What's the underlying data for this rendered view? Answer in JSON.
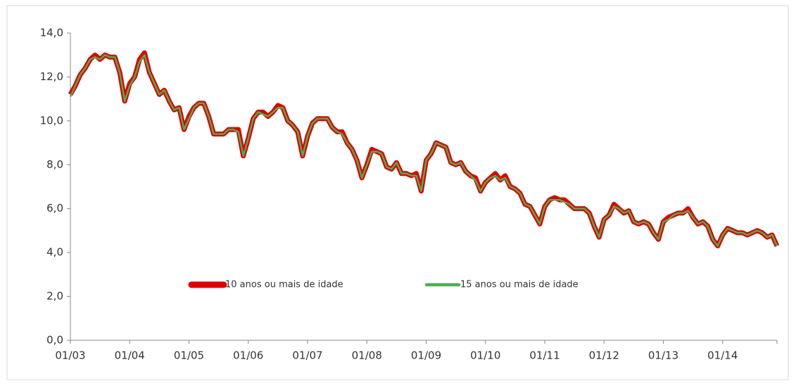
{
  "chart_data": {
    "type": "line",
    "categories": [
      "01/03",
      null,
      null,
      null,
      null,
      null,
      null,
      null,
      null,
      null,
      null,
      null,
      "01/04",
      null,
      null,
      null,
      null,
      null,
      null,
      null,
      null,
      null,
      null,
      null,
      "01/05",
      null,
      null,
      null,
      null,
      null,
      null,
      null,
      null,
      null,
      null,
      null,
      "01/06",
      null,
      null,
      null,
      null,
      null,
      null,
      null,
      null,
      null,
      null,
      null,
      "01/07",
      null,
      null,
      null,
      null,
      null,
      null,
      null,
      null,
      null,
      null,
      null,
      "01/08",
      null,
      null,
      null,
      null,
      null,
      null,
      null,
      null,
      null,
      null,
      null,
      "01/09",
      null,
      null,
      null,
      null,
      null,
      null,
      null,
      null,
      null,
      null,
      null,
      "01/10",
      null,
      null,
      null,
      null,
      null,
      null,
      null,
      null,
      null,
      null,
      null,
      "01/11",
      null,
      null,
      null,
      null,
      null,
      null,
      null,
      null,
      null,
      null,
      null,
      "01/12",
      null,
      null,
      null,
      null,
      null,
      null,
      null,
      null,
      null,
      null,
      null,
      "01/13",
      null,
      null,
      null,
      null,
      null,
      null,
      null,
      null,
      null,
      null,
      null,
      "01/14",
      null,
      null,
      null,
      null,
      null,
      null,
      null,
      null,
      null,
      null,
      null
    ],
    "series": [
      {
        "name": "10 anos ou mais de idade",
        "color": "#e00000",
        "values": [
          11.2,
          11.6,
          12.1,
          12.4,
          12.8,
          13.0,
          12.8,
          13.0,
          12.9,
          12.9,
          12.2,
          10.9,
          11.7,
          12.0,
          12.8,
          13.1,
          12.2,
          11.7,
          11.2,
          11.4,
          10.9,
          10.5,
          10.6,
          9.6,
          10.2,
          10.6,
          10.8,
          10.8,
          10.2,
          9.4,
          9.4,
          9.4,
          9.6,
          9.6,
          9.6,
          8.4,
          9.2,
          10.1,
          10.4,
          10.4,
          10.2,
          10.4,
          10.7,
          10.6,
          10.0,
          9.8,
          9.5,
          8.4,
          9.3,
          9.9,
          10.1,
          10.1,
          10.1,
          9.7,
          9.5,
          9.5,
          9.0,
          8.7,
          8.2,
          7.4,
          8.0,
          8.7,
          8.6,
          8.5,
          7.9,
          7.8,
          8.1,
          7.6,
          7.6,
          7.5,
          7.6,
          6.8,
          8.2,
          8.5,
          9.0,
          8.9,
          8.8,
          8.1,
          8.0,
          8.1,
          7.7,
          7.5,
          7.4,
          6.8,
          7.2,
          7.4,
          7.6,
          7.3,
          7.5,
          7.0,
          6.9,
          6.7,
          6.2,
          6.1,
          5.7,
          5.3,
          6.1,
          6.4,
          6.5,
          6.4,
          6.4,
          6.2,
          6.0,
          6.0,
          6.0,
          5.8,
          5.2,
          4.7,
          5.5,
          5.7,
          6.2,
          6.0,
          5.8,
          5.9,
          5.4,
          5.3,
          5.4,
          5.3,
          4.9,
          4.6,
          5.4,
          5.6,
          5.7,
          5.8,
          5.8,
          6.0,
          5.6,
          5.3,
          5.4,
          5.2,
          4.6,
          4.3,
          4.8,
          5.1,
          5.0,
          4.9,
          4.9,
          4.8,
          4.9,
          5.0,
          4.9,
          4.7,
          4.8,
          4.3
        ]
      },
      {
        "name": "15 anos ou mais de idade",
        "color": "#4caf50",
        "values": [
          11.1,
          11.6,
          12.1,
          12.4,
          12.8,
          12.9,
          12.8,
          13.0,
          12.9,
          12.9,
          12.2,
          10.9,
          11.6,
          12.0,
          12.7,
          13.0,
          12.2,
          11.7,
          11.2,
          11.4,
          10.9,
          10.5,
          10.6,
          9.6,
          10.1,
          10.6,
          10.8,
          10.8,
          10.2,
          9.4,
          9.4,
          9.4,
          9.6,
          9.6,
          9.5,
          8.4,
          9.2,
          10.1,
          10.4,
          10.3,
          10.2,
          10.4,
          10.6,
          10.6,
          10.0,
          9.8,
          9.5,
          8.4,
          9.3,
          9.9,
          10.1,
          10.1,
          10.1,
          9.7,
          9.5,
          9.4,
          9.0,
          8.7,
          8.2,
          7.4,
          8.0,
          8.6,
          8.6,
          8.5,
          7.9,
          7.8,
          8.1,
          7.6,
          7.6,
          7.5,
          7.5,
          6.8,
          8.2,
          8.5,
          9.0,
          8.9,
          8.8,
          8.1,
          8.0,
          8.1,
          7.7,
          7.5,
          7.3,
          6.8,
          7.2,
          7.4,
          7.5,
          7.3,
          7.4,
          7.0,
          6.9,
          6.7,
          6.2,
          6.1,
          5.7,
          5.3,
          6.1,
          6.4,
          6.4,
          6.4,
          6.3,
          6.2,
          6.0,
          6.0,
          6.0,
          5.8,
          5.2,
          4.7,
          5.5,
          5.7,
          6.1,
          6.0,
          5.8,
          5.9,
          5.4,
          5.3,
          5.4,
          5.3,
          4.9,
          4.6,
          5.4,
          5.5,
          5.7,
          5.8,
          5.8,
          5.9,
          5.6,
          5.3,
          5.4,
          5.2,
          4.6,
          4.3,
          4.8,
          5.1,
          5.0,
          4.9,
          4.9,
          4.8,
          4.9,
          5.0,
          4.9,
          4.7,
          4.8,
          4.3
        ]
      }
    ],
    "ylim": [
      0,
      14
    ],
    "yticks": [
      {
        "value": 0,
        "label": "0,0"
      },
      {
        "value": 2,
        "label": "2,0"
      },
      {
        "value": 4,
        "label": "4,0"
      },
      {
        "value": 6,
        "label": "6,0"
      },
      {
        "value": 8,
        "label": "8,0"
      },
      {
        "value": 10,
        "label": "10,0"
      },
      {
        "value": 12,
        "label": "12,0"
      },
      {
        "value": 14,
        "label": "14,0"
      }
    ],
    "grid": false,
    "legend": "center"
  }
}
